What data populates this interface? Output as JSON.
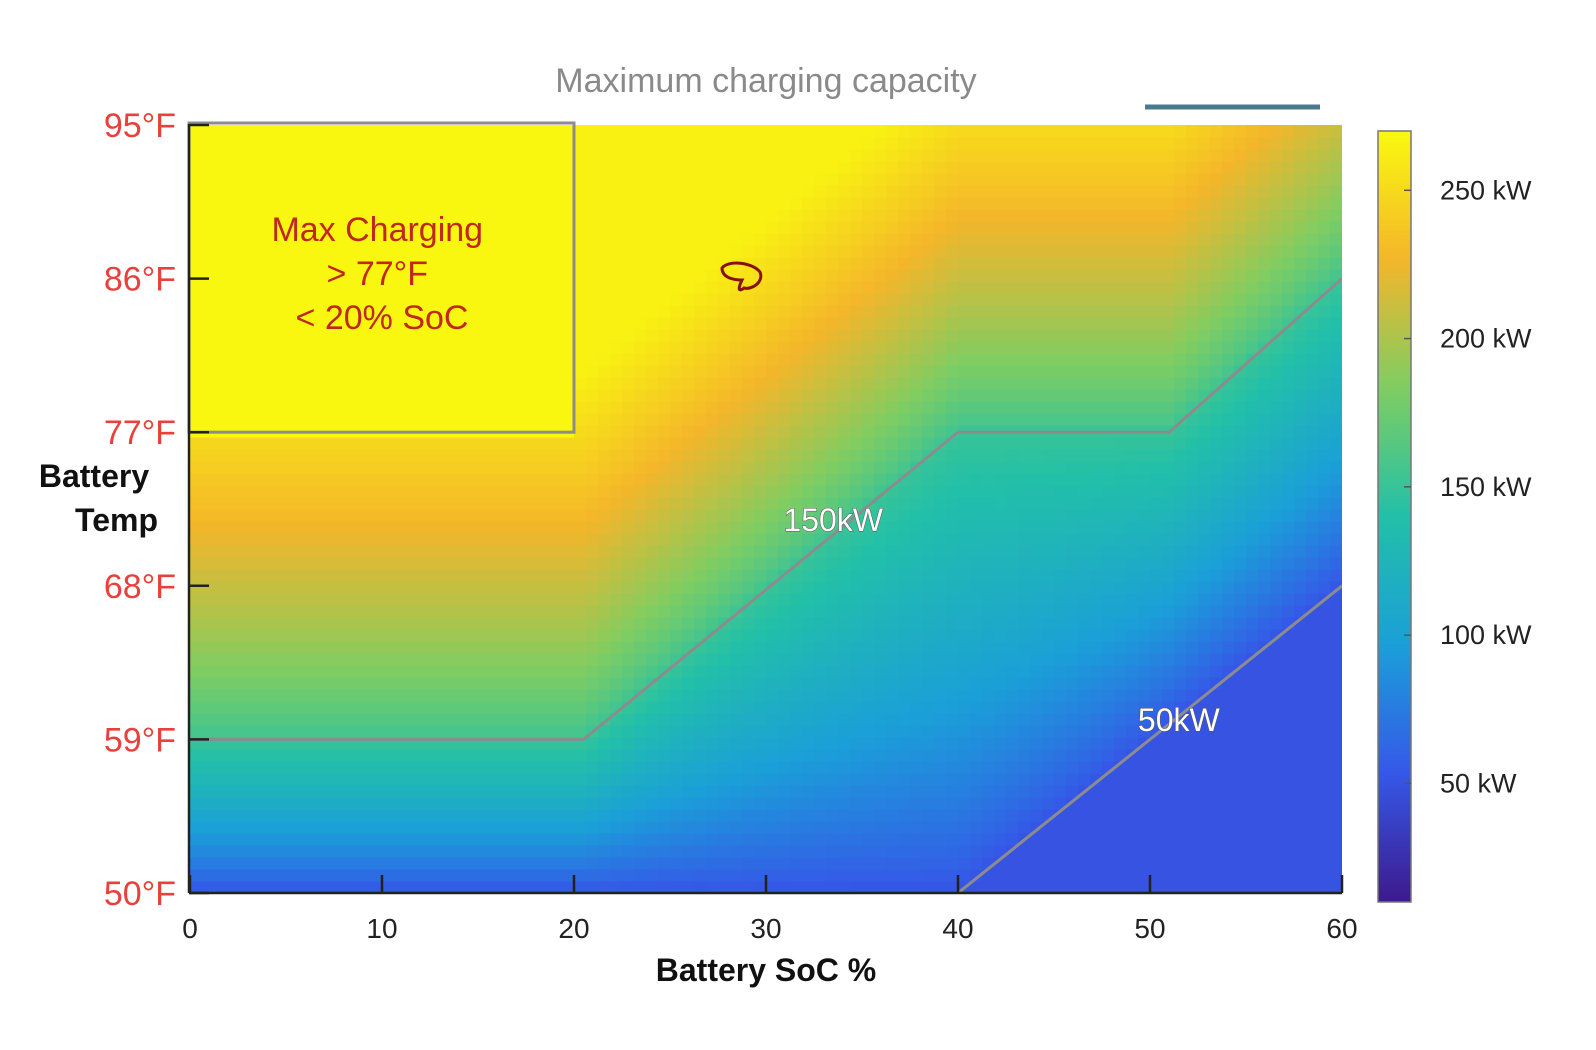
{
  "chart_data": {
    "type": "heatmap",
    "title": "Maximum charging capacity",
    "xlabel": "Battery SoC %",
    "ylabel": [
      "Battery",
      "Temp"
    ],
    "xlim": [
      0,
      60
    ],
    "x_ticks": [
      0,
      10,
      20,
      30,
      40,
      50,
      60
    ],
    "y_ticks": [
      {
        "value": 50,
        "label": "50°F"
      },
      {
        "value": 59,
        "label": "59°F"
      },
      {
        "value": 68,
        "label": "68°F"
      },
      {
        "value": 77,
        "label": "77°F"
      },
      {
        "value": 86,
        "label": "86°F"
      },
      {
        "value": 95,
        "label": "95°F"
      }
    ],
    "ylim": [
      50,
      95
    ],
    "colorbar": {
      "range": [
        10,
        270
      ],
      "ticks": [
        {
          "value": 50,
          "label": "50 kW"
        },
        {
          "value": 100,
          "label": "100 kW"
        },
        {
          "value": 150,
          "label": "150 kW"
        },
        {
          "value": 200,
          "label": "200 kW"
        },
        {
          "value": 250,
          "label": "250 kW"
        }
      ],
      "colors": [
        "#3d1a8c",
        "#3558e8",
        "#1b9fd8",
        "#22c0a8",
        "#7fcd62",
        "#f4b62a",
        "#f9f90f"
      ]
    },
    "contours": [
      {
        "label": "150kW",
        "points": [
          [
            0,
            59
          ],
          [
            20.5,
            59
          ],
          [
            40,
            77
          ],
          [
            51,
            77
          ],
          [
            60,
            86
          ]
        ]
      },
      {
        "label": "50kW",
        "points": [
          [
            40,
            50
          ],
          [
            60,
            68
          ]
        ]
      }
    ],
    "region": {
      "x": [
        0,
        20
      ],
      "y": [
        77,
        95
      ],
      "note": [
        "Max Charging",
        "> 77°F",
        "< 20% SoC"
      ]
    }
  }
}
